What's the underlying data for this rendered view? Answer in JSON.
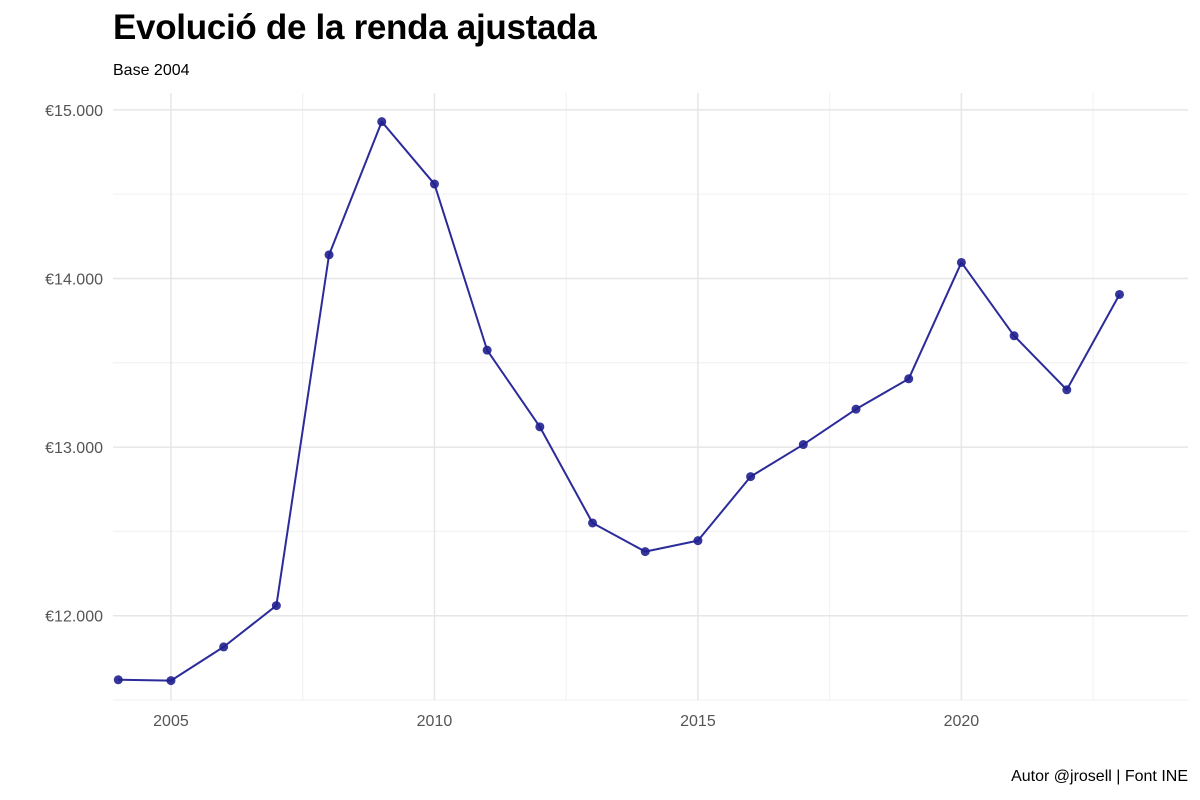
{
  "chart_data": {
    "type": "line",
    "title": "Evolució de la renda ajustada",
    "subtitle": "Base 2004",
    "caption": "Autor @jrosell | Font INE",
    "xlabel": "",
    "ylabel": "",
    "x": [
      2004,
      2005,
      2006,
      2007,
      2008,
      2009,
      2010,
      2011,
      2012,
      2013,
      2014,
      2015,
      2016,
      2017,
      2018,
      2019,
      2020,
      2021,
      2022,
      2023
    ],
    "series": [
      {
        "values": [
          11620,
          11615,
          11815,
          12060,
          14140,
          14930,
          14560,
          13575,
          13120,
          12550,
          12380,
          12445,
          12825,
          13015,
          13225,
          13405,
          14095,
          13660,
          13340,
          13905
        ]
      }
    ],
    "xlim": [
      2003.9,
      2024.3
    ],
    "ylim": [
      11500,
      15100
    ],
    "x_ticks": [
      2005,
      2010,
      2015,
      2020
    ],
    "x_tick_labels": [
      "2005",
      "2010",
      "2015",
      "2020"
    ],
    "y_ticks": [
      12000,
      13000,
      14000,
      15000
    ],
    "y_tick_labels": [
      "€12.000",
      "€13.000",
      "€14.000",
      "€15.000"
    ],
    "grid": true,
    "legend": "none",
    "colors": {
      "line": "#2b2b9a",
      "point": "#1f1f8f",
      "grid_major": "#e6e6e6",
      "grid_minor": "#f0f0f0"
    }
  }
}
